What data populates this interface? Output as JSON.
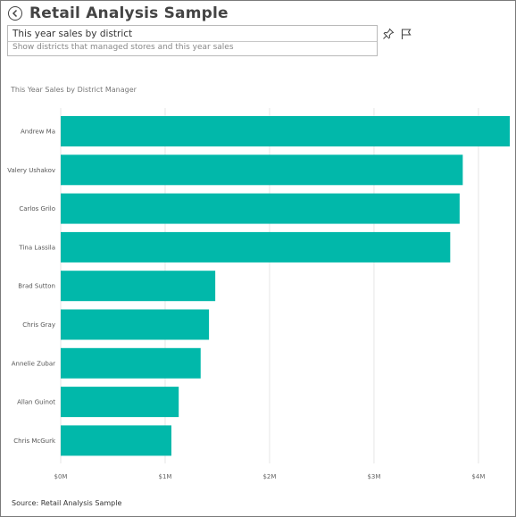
{
  "header": {
    "title": "Retail Analysis Sample"
  },
  "qa": {
    "value": "This year sales by district",
    "hint": "Show districts that managed stores and this year sales"
  },
  "icons": {
    "back": "back-arrow-icon",
    "pin": "pin-icon",
    "flag": "flag-icon"
  },
  "colors": {
    "bar": "#01b8aa",
    "grid": "#e6e6e6"
  },
  "chart_data": {
    "type": "bar",
    "orientation": "horizontal",
    "title": "This Year Sales by District Manager",
    "categories": [
      "Andrew Ma",
      "Valery Ushakov",
      "Carlos Grilo",
      "Tina Lassila",
      "Brad Sutton",
      "Chris Gray",
      "Annelie Zubar",
      "Allan Guinot",
      "Chris McGurk"
    ],
    "values": [
      4.3,
      3.85,
      3.82,
      3.73,
      1.48,
      1.42,
      1.34,
      1.13,
      1.06
    ],
    "value_unit": "M",
    "xlim": [
      0,
      4.3
    ],
    "x_ticks": [
      0,
      1,
      2,
      3,
      4
    ],
    "x_tick_labels": [
      "$0M",
      "$1M",
      "$2M",
      "$3M",
      "$4M"
    ],
    "grid": true
  },
  "footer": {
    "source": "Source: Retail Analysis Sample"
  }
}
